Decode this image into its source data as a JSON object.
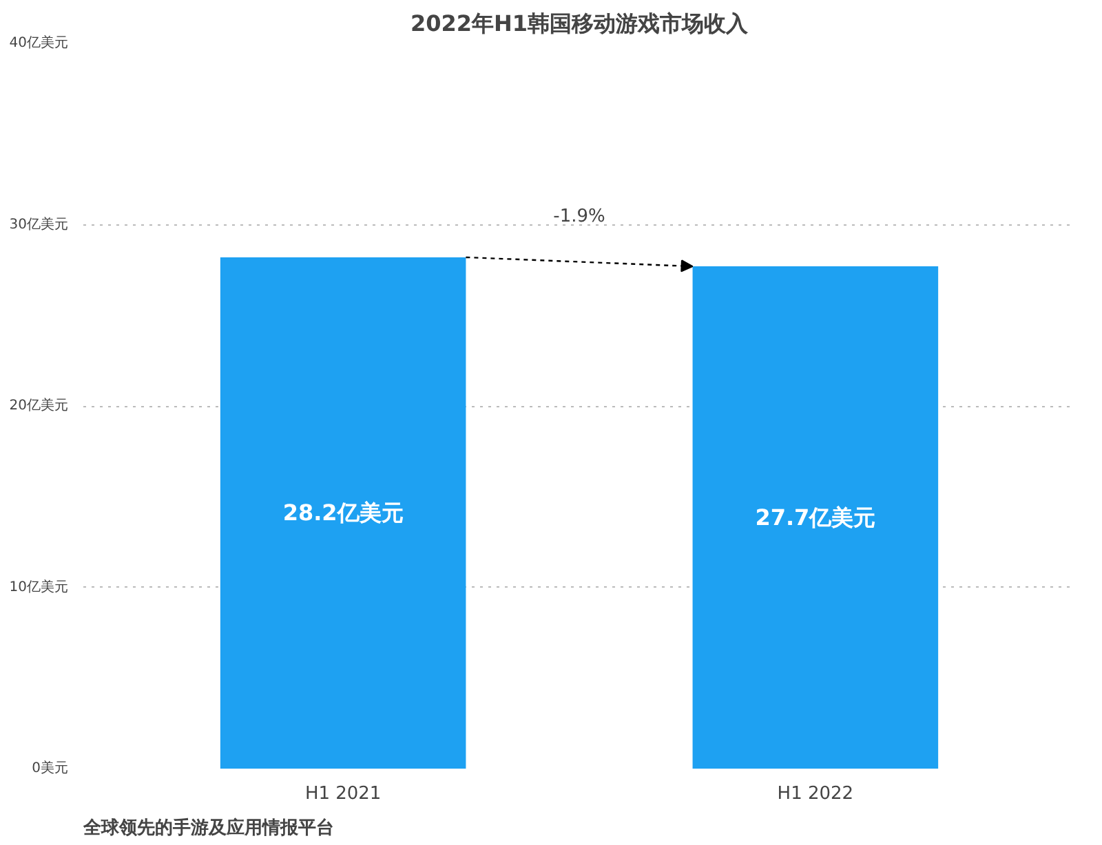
{
  "chart_data": {
    "type": "bar",
    "title": "2022年H1韩国移动游戏市场收入",
    "categories": [
      "H1 2021",
      "H1 2022"
    ],
    "values": [
      28.2,
      27.7
    ],
    "color": "#1ea1f2",
    "value_labels": [
      "28.2亿美元",
      "27.7亿美元"
    ],
    "ylim": [
      0,
      40
    ],
    "yticks": [
      {
        "value": 0,
        "label": "0美元"
      },
      {
        "value": 10,
        "label": "10亿美元"
      },
      {
        "value": 20,
        "label": "20亿美元"
      },
      {
        "value": 30,
        "label": "30亿美元"
      },
      {
        "value": 40,
        "label": "40亿美元"
      }
    ],
    "grid": "y",
    "annotations": [
      "-1.9%",
      "全球领先的手游及应用情报平台"
    ]
  }
}
